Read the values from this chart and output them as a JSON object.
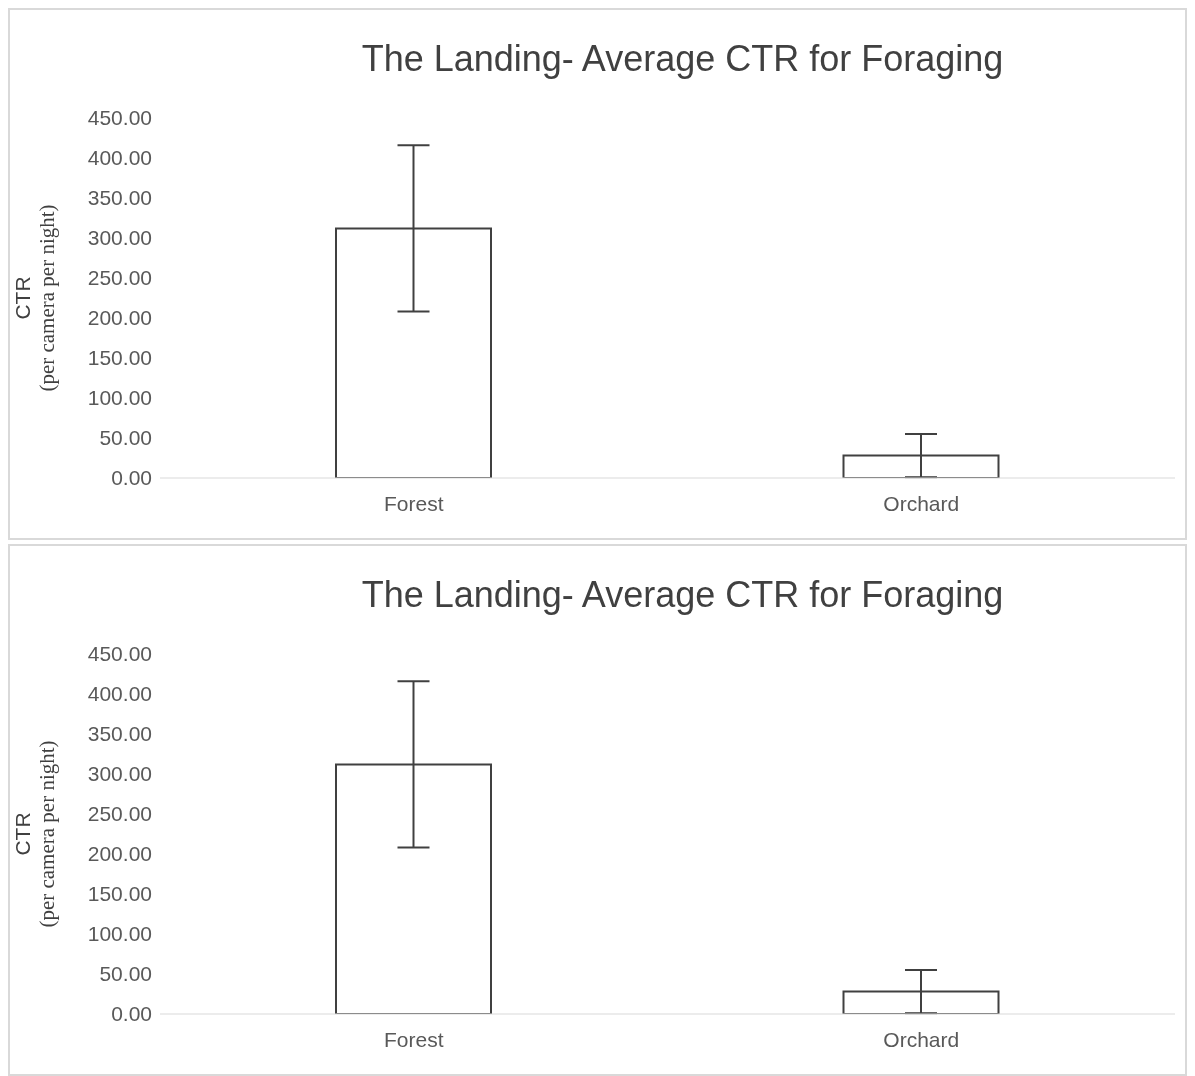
{
  "chart_data": [
    {
      "type": "bar",
      "title": "The Landing- Average CTR for Foraging",
      "ylabel": "CTR\n(per camera per night)",
      "categories": [
        "Forest",
        "Orchard"
      ],
      "values": [
        312,
        28
      ],
      "errors": [
        104,
        27
      ],
      "color": "#ffffff",
      "ylim": [
        0,
        450
      ],
      "yticks": [
        {
          "value": 0,
          "label": "0.00"
        },
        {
          "value": 50,
          "label": "50.00"
        },
        {
          "value": 100,
          "label": "100.00"
        },
        {
          "value": 150,
          "label": "150.00"
        },
        {
          "value": 200,
          "label": "200.00"
        },
        {
          "value": 250,
          "label": "250.00"
        },
        {
          "value": 300,
          "label": "300.00"
        },
        {
          "value": 350,
          "label": "350.00"
        },
        {
          "value": 400,
          "label": "400.00"
        },
        {
          "value": 450,
          "label": "450.00"
        }
      ],
      "grid": false,
      "legend": false
    },
    {
      "type": "bar",
      "title": "The Landing- Average CTR for Foraging",
      "ylabel": "CTR\n(per camera per night)",
      "categories": [
        "Forest",
        "Orchard"
      ],
      "values": [
        312,
        28
      ],
      "errors": [
        104,
        27
      ],
      "color": "#ffffff",
      "ylim": [
        0,
        450
      ],
      "yticks": [
        {
          "value": 0,
          "label": "0.00"
        },
        {
          "value": 50,
          "label": "50.00"
        },
        {
          "value": 100,
          "label": "100.00"
        },
        {
          "value": 150,
          "label": "150.00"
        },
        {
          "value": 200,
          "label": "200.00"
        },
        {
          "value": 250,
          "label": "250.00"
        },
        {
          "value": 300,
          "label": "300.00"
        },
        {
          "value": 350,
          "label": "350.00"
        },
        {
          "value": 400,
          "label": "400.00"
        },
        {
          "value": 450,
          "label": "450.00"
        }
      ],
      "grid": false,
      "legend": false
    }
  ]
}
